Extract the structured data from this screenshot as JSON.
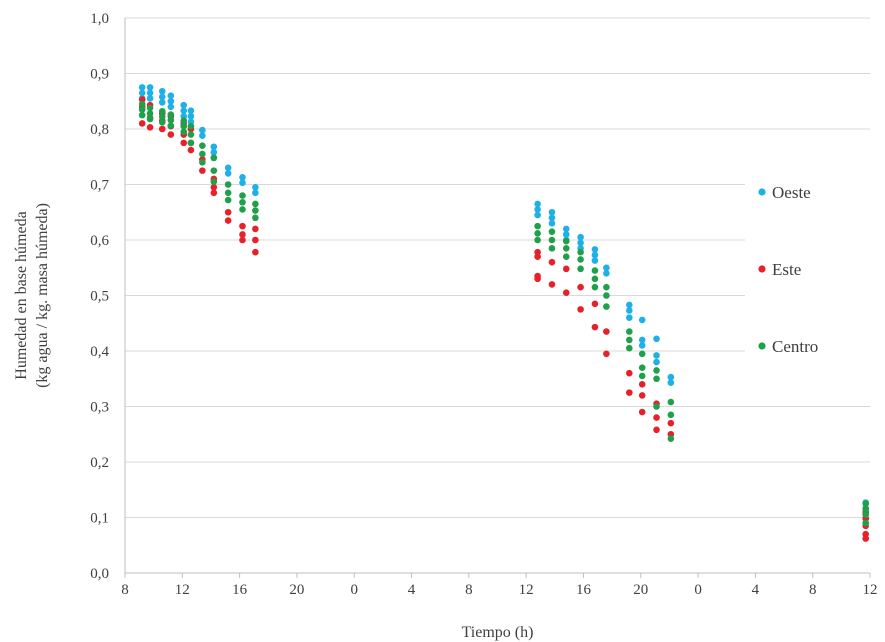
{
  "chart_data": {
    "type": "scatter",
    "xlabel": "Tiempo (h)",
    "ylabel_lines": [
      "Humedad en base húmeda",
      "(kg agua / kg. masa húmeda)"
    ],
    "x_tick_labels": [
      "8",
      "12",
      "16",
      "20",
      "0",
      "4",
      "8",
      "12",
      "16",
      "20",
      "0",
      "4",
      "8",
      "12"
    ],
    "y_tick_labels": [
      "0,0",
      "0,1",
      "0,2",
      "0,3",
      "0,4",
      "0,5",
      "0,6",
      "0,7",
      "0,8",
      "0,9",
      "1,0"
    ],
    "x_unit": "elapsed hours from 8:00 of day 1",
    "xlim": [
      0,
      52
    ],
    "ylim": [
      0,
      1
    ],
    "grid": "horizontal",
    "legend_position": "right",
    "series": [
      {
        "name": "Oeste",
        "color": "#1fb0e8",
        "points": [
          [
            1.2,
            0.875
          ],
          [
            1.2,
            0.865
          ],
          [
            1.2,
            0.855
          ],
          [
            1.75,
            0.875
          ],
          [
            1.75,
            0.865
          ],
          [
            1.75,
            0.855
          ],
          [
            2.6,
            0.868
          ],
          [
            2.6,
            0.858
          ],
          [
            2.6,
            0.848
          ],
          [
            3.2,
            0.86
          ],
          [
            3.2,
            0.85
          ],
          [
            3.2,
            0.84
          ],
          [
            4.1,
            0.843
          ],
          [
            4.1,
            0.833
          ],
          [
            4.1,
            0.823
          ],
          [
            4.6,
            0.833
          ],
          [
            4.6,
            0.823
          ],
          [
            4.6,
            0.813
          ],
          [
            5.4,
            0.798
          ],
          [
            5.4,
            0.788
          ],
          [
            6.2,
            0.768
          ],
          [
            6.2,
            0.758
          ],
          [
            6.2,
            0.748
          ],
          [
            7.2,
            0.73
          ],
          [
            7.2,
            0.72
          ],
          [
            8.2,
            0.713
          ],
          [
            8.2,
            0.703
          ],
          [
            9.1,
            0.695
          ],
          [
            9.1,
            0.685
          ],
          [
            28.8,
            0.665
          ],
          [
            28.8,
            0.655
          ],
          [
            28.8,
            0.645
          ],
          [
            29.8,
            0.65
          ],
          [
            29.8,
            0.64
          ],
          [
            29.8,
            0.63
          ],
          [
            30.8,
            0.62
          ],
          [
            30.8,
            0.61
          ],
          [
            30.8,
            0.6
          ],
          [
            31.8,
            0.605
          ],
          [
            31.8,
            0.595
          ],
          [
            31.8,
            0.585
          ],
          [
            32.8,
            0.583
          ],
          [
            32.8,
            0.573
          ],
          [
            32.8,
            0.563
          ],
          [
            33.6,
            0.55
          ],
          [
            33.6,
            0.54
          ],
          [
            35.2,
            0.483
          ],
          [
            35.2,
            0.473
          ],
          [
            35.2,
            0.46
          ],
          [
            36.1,
            0.456
          ],
          [
            36.1,
            0.42
          ],
          [
            36.1,
            0.41
          ],
          [
            37.1,
            0.422
          ],
          [
            37.1,
            0.392
          ],
          [
            37.1,
            0.38
          ],
          [
            38.1,
            0.353
          ],
          [
            38.1,
            0.343
          ],
          [
            51.7,
            0.127
          ],
          [
            51.7,
            0.117
          ],
          [
            51.7,
            0.107
          ]
        ]
      },
      {
        "name": "Este",
        "color": "#e8202a",
        "points": [
          [
            1.2,
            0.853
          ],
          [
            1.2,
            0.84
          ],
          [
            1.2,
            0.81
          ],
          [
            1.75,
            0.843
          ],
          [
            1.75,
            0.82
          ],
          [
            1.75,
            0.803
          ],
          [
            2.6,
            0.828
          ],
          [
            2.6,
            0.815
          ],
          [
            2.6,
            0.8
          ],
          [
            3.2,
            0.823
          ],
          [
            3.2,
            0.805
          ],
          [
            3.2,
            0.79
          ],
          [
            4.1,
            0.81
          ],
          [
            4.1,
            0.79
          ],
          [
            4.1,
            0.775
          ],
          [
            4.6,
            0.8
          ],
          [
            4.6,
            0.775
          ],
          [
            4.6,
            0.762
          ],
          [
            5.4,
            0.745
          ],
          [
            5.4,
            0.725
          ],
          [
            6.2,
            0.71
          ],
          [
            6.2,
            0.695
          ],
          [
            6.2,
            0.685
          ],
          [
            7.2,
            0.65
          ],
          [
            7.2,
            0.635
          ],
          [
            8.2,
            0.625
          ],
          [
            8.2,
            0.61
          ],
          [
            8.2,
            0.6
          ],
          [
            9.1,
            0.62
          ],
          [
            9.1,
            0.6
          ],
          [
            9.1,
            0.578
          ],
          [
            28.8,
            0.578
          ],
          [
            28.8,
            0.57
          ],
          [
            28.8,
            0.535
          ],
          [
            28.8,
            0.53
          ],
          [
            29.8,
            0.56
          ],
          [
            29.8,
            0.52
          ],
          [
            30.8,
            0.548
          ],
          [
            30.8,
            0.505
          ],
          [
            31.8,
            0.515
          ],
          [
            31.8,
            0.475
          ],
          [
            32.8,
            0.485
          ],
          [
            32.8,
            0.443
          ],
          [
            33.6,
            0.435
          ],
          [
            33.6,
            0.395
          ],
          [
            35.2,
            0.36
          ],
          [
            35.2,
            0.325
          ],
          [
            36.1,
            0.34
          ],
          [
            36.1,
            0.32
          ],
          [
            36.1,
            0.29
          ],
          [
            37.1,
            0.305
          ],
          [
            37.1,
            0.28
          ],
          [
            37.1,
            0.258
          ],
          [
            38.1,
            0.27
          ],
          [
            38.1,
            0.25
          ],
          [
            51.7,
            0.11
          ],
          [
            51.7,
            0.098
          ],
          [
            51.7,
            0.085
          ],
          [
            51.7,
            0.07
          ],
          [
            51.7,
            0.062
          ]
        ]
      },
      {
        "name": "Centro",
        "color": "#1fa04a",
        "points": [
          [
            1.2,
            0.845
          ],
          [
            1.2,
            0.835
          ],
          [
            1.2,
            0.825
          ],
          [
            1.75,
            0.838
          ],
          [
            1.75,
            0.828
          ],
          [
            1.75,
            0.818
          ],
          [
            2.6,
            0.832
          ],
          [
            2.6,
            0.822
          ],
          [
            2.6,
            0.812
          ],
          [
            3.2,
            0.826
          ],
          [
            3.2,
            0.816
          ],
          [
            3.2,
            0.806
          ],
          [
            4.1,
            0.815
          ],
          [
            4.1,
            0.805
          ],
          [
            4.1,
            0.795
          ],
          [
            4.6,
            0.805
          ],
          [
            4.6,
            0.79
          ],
          [
            4.6,
            0.775
          ],
          [
            5.4,
            0.77
          ],
          [
            5.4,
            0.755
          ],
          [
            5.4,
            0.74
          ],
          [
            6.2,
            0.748
          ],
          [
            6.2,
            0.725
          ],
          [
            6.2,
            0.705
          ],
          [
            7.2,
            0.7
          ],
          [
            7.2,
            0.685
          ],
          [
            7.2,
            0.672
          ],
          [
            8.2,
            0.68
          ],
          [
            8.2,
            0.668
          ],
          [
            8.2,
            0.655
          ],
          [
            9.1,
            0.665
          ],
          [
            9.1,
            0.653
          ],
          [
            9.1,
            0.64
          ],
          [
            28.8,
            0.625
          ],
          [
            28.8,
            0.612
          ],
          [
            28.8,
            0.6
          ],
          [
            29.8,
            0.615
          ],
          [
            29.8,
            0.6
          ],
          [
            29.8,
            0.585
          ],
          [
            30.8,
            0.598
          ],
          [
            30.8,
            0.585
          ],
          [
            30.8,
            0.57
          ],
          [
            31.8,
            0.578
          ],
          [
            31.8,
            0.565
          ],
          [
            31.8,
            0.548
          ],
          [
            32.8,
            0.545
          ],
          [
            32.8,
            0.53
          ],
          [
            32.8,
            0.515
          ],
          [
            33.6,
            0.515
          ],
          [
            33.6,
            0.5
          ],
          [
            33.6,
            0.48
          ],
          [
            35.2,
            0.435
          ],
          [
            35.2,
            0.42
          ],
          [
            35.2,
            0.405
          ],
          [
            36.1,
            0.395
          ],
          [
            36.1,
            0.37
          ],
          [
            36.1,
            0.355
          ],
          [
            37.1,
            0.365
          ],
          [
            37.1,
            0.35
          ],
          [
            37.1,
            0.3
          ],
          [
            38.1,
            0.308
          ],
          [
            38.1,
            0.285
          ],
          [
            38.1,
            0.242
          ],
          [
            51.7,
            0.125
          ],
          [
            51.7,
            0.115
          ],
          [
            51.7,
            0.105
          ],
          [
            51.7,
            0.09
          ]
        ]
      }
    ]
  }
}
